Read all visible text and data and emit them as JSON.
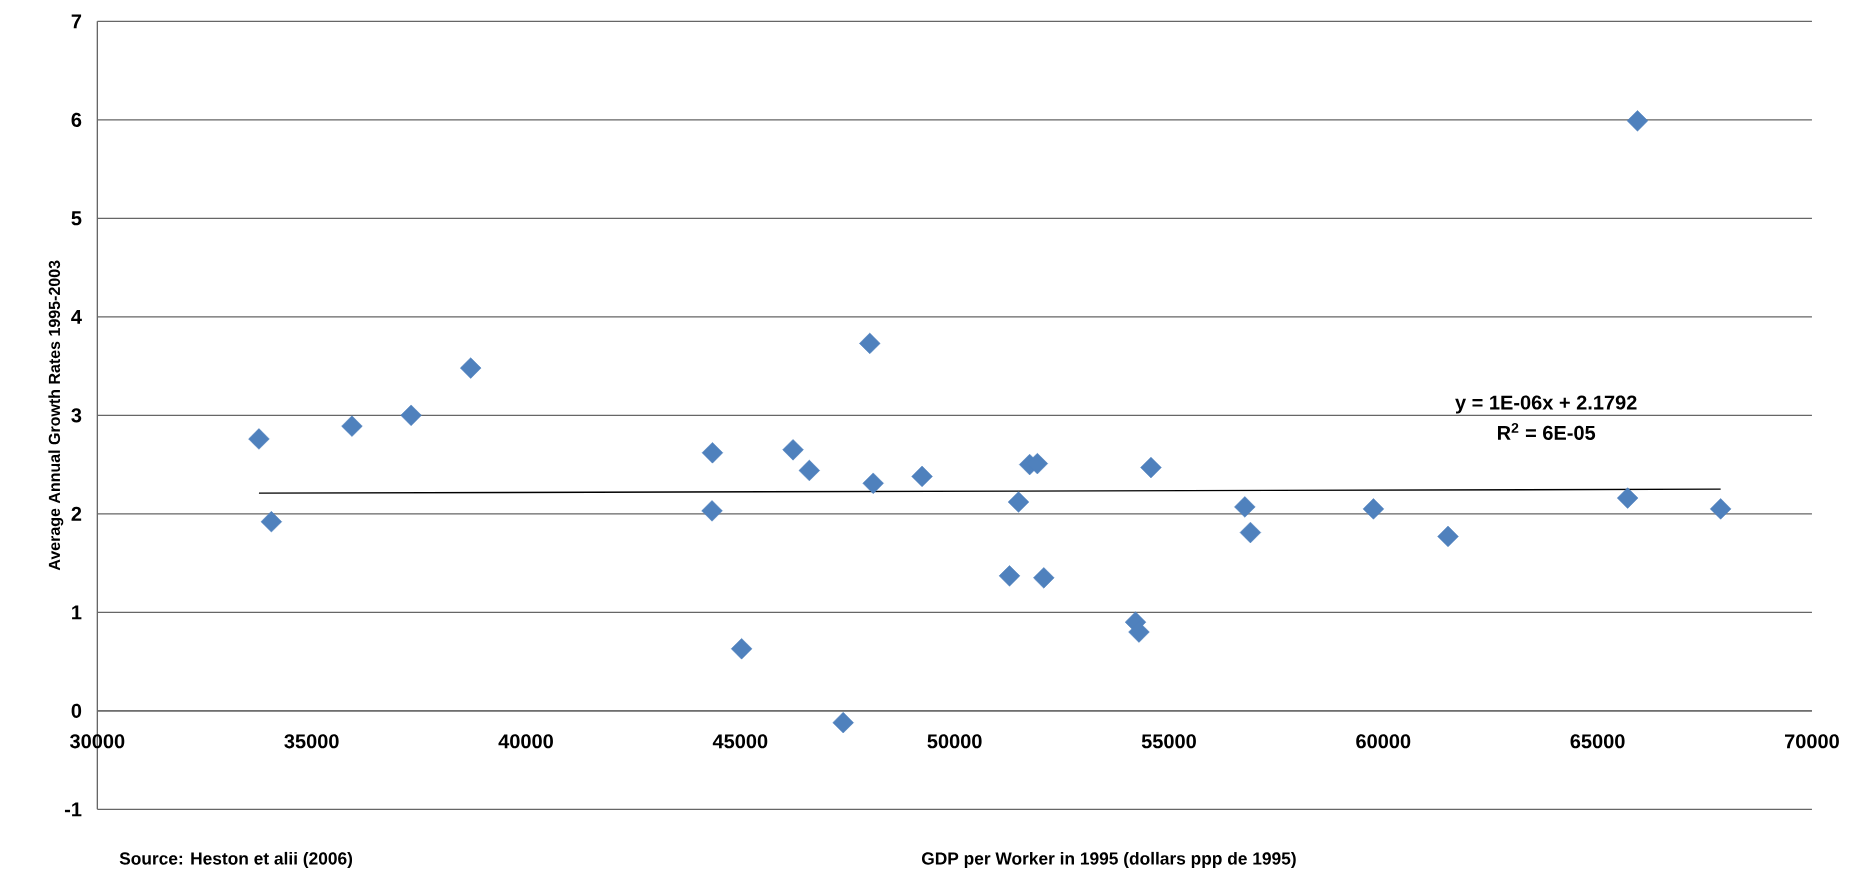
{
  "chart_data": {
    "type": "scatter",
    "xlabel": "GDP per Worker in 1995  (dollars ppp de 1995)",
    "ylabel": "Average Annual Growth Rates 1995-2003",
    "annotations": [
      "y = 1E-06x + 2.1792",
      "R$^{2}$ = 6E-05",
      "Source: Heston et alii (2006)"
    ],
    "xlim": [
      30000,
      70000
    ],
    "xticks": [
      30000,
      35000,
      40000,
      45000,
      50000,
      55000,
      60000,
      65000,
      70000
    ],
    "ylim": [
      -1,
      7
    ],
    "yticks": [
      -1,
      0,
      1,
      2,
      3,
      4,
      5,
      6,
      7
    ],
    "grid": "y",
    "marker": "diamond",
    "series": [
      {
        "color": "#4f81bd",
        "x": [
          33770,
          34060,
          35940,
          37320,
          38710,
          44350,
          44340,
          45030,
          46230,
          46610,
          47400,
          48020,
          48100,
          49240,
          51280,
          51490,
          51750,
          51930,
          52080,
          54220,
          54300,
          54580,
          56770,
          56900,
          59770,
          61510,
          65700,
          65930,
          67870
        ],
        "values": [
          2.76,
          1.92,
          2.89,
          3.0,
          3.48,
          2.62,
          2.03,
          0.63,
          2.65,
          2.44,
          -0.12,
          3.73,
          2.31,
          2.38,
          1.37,
          2.12,
          2.5,
          2.51,
          1.35,
          0.9,
          0.8,
          2.47,
          2.07,
          1.81,
          2.05,
          1.77,
          2.16,
          5.99,
          2.05
        ]
      },
      {
        "type": "line",
        "marker": "none",
        "color": "#000000",
        "x": [
          33770,
          67870
        ],
        "values": [
          2.21,
          2.25
        ]
      }
    ]
  }
}
